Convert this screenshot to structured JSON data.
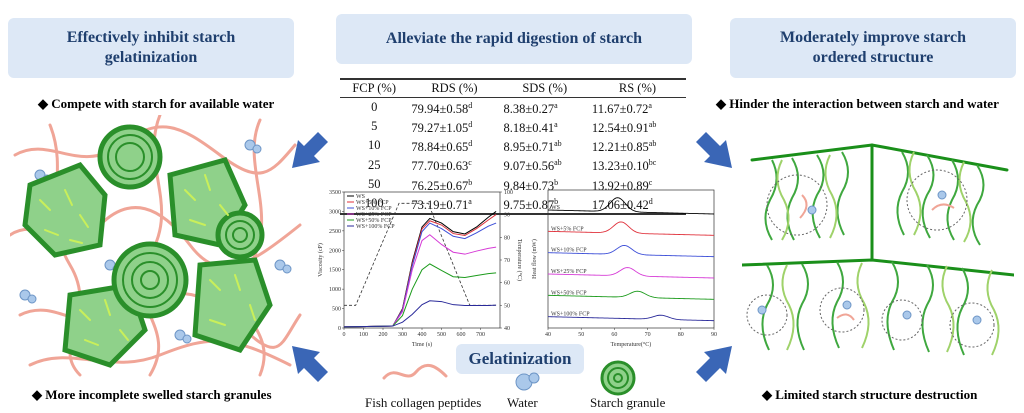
{
  "headers": {
    "left": "Effectively inhibit starch gelatinization",
    "center": "Alleviate the rapid digestion of starch",
    "right": "Moderately improve starch ordered structure"
  },
  "bullets": {
    "left_top": "Compete with starch for available water",
    "left_bottom": "More incomplete swelled starch granules",
    "right_top": "Hinder the interaction between starch and water",
    "right_bottom": "Limited starch structure destruction"
  },
  "table": {
    "columns": [
      "FCP (%)",
      "RDS (%)",
      "SDS (%)",
      "RS (%)"
    ],
    "rows": [
      {
        "fcp": "0",
        "rds": "79.94±0.58",
        "rds_sup": "d",
        "sds": "8.38±0.27",
        "sds_sup": "a",
        "rs": "11.67±0.72",
        "rs_sup": "a"
      },
      {
        "fcp": "5",
        "rds": "79.27±1.05",
        "rds_sup": "d",
        "sds": "8.18±0.41",
        "sds_sup": "a",
        "rs": "12.54±0.91",
        "rs_sup": "ab"
      },
      {
        "fcp": "10",
        "rds": "78.84±0.65",
        "rds_sup": "d",
        "sds": "8.95±0.71",
        "sds_sup": "ab",
        "rs": "12.21±0.85",
        "rs_sup": "ab"
      },
      {
        "fcp": "25",
        "rds": "77.70±0.63",
        "rds_sup": "c",
        "sds": "9.07±0.56",
        "sds_sup": "ab",
        "rs": "13.23±0.10",
        "rs_sup": "bc"
      },
      {
        "fcp": "50",
        "rds": "76.25±0.67",
        "rds_sup": "b",
        "sds": "9.84±0.73",
        "sds_sup": "b",
        "rs": "13.92±0.89",
        "rs_sup": "c"
      },
      {
        "fcp": "100",
        "rds": "73.19±0.71",
        "rds_sup": "a",
        "sds": "9.75±0.87",
        "sds_sup": "b",
        "rs": "17.06±0.42",
        "rs_sup": "d"
      }
    ]
  },
  "gelatinization_label": "Gelatinization",
  "legend": {
    "peptides": "Fish collagen peptides",
    "water": "Water",
    "granule": "Starch granule"
  },
  "chart_data": [
    {
      "type": "line",
      "xlabel": "Time (s)",
      "ylabel": "Viscosity (cP)",
      "y2label": "Temperature (°C)",
      "xlim": [
        0,
        800
      ],
      "ylim": [
        0,
        3500
      ],
      "y2lim": [
        40,
        100
      ],
      "x_ticks": [
        "0",
        "100",
        "200",
        "300",
        "400",
        "500",
        "600",
        "700"
      ],
      "y_ticks": [
        "0",
        "500",
        "1000",
        "1500",
        "2000",
        "2500",
        "3000",
        "3500"
      ],
      "y2_ticks": [
        "40",
        "50",
        "60",
        "70",
        "80",
        "90",
        "100"
      ],
      "legend": [
        "WS",
        "WS+5% FCP",
        "WS+10% FCP",
        "WS+25% FCP",
        "WS+50% FCP",
        "WS+100% FCP"
      ],
      "colors": [
        "#000000",
        "#e0313b",
        "#3d4fd8",
        "#d63ad6",
        "#1c9b1c",
        "#2a2a9a"
      ],
      "x": [
        0,
        250,
        300,
        350,
        400,
        440,
        500,
        560,
        620,
        680,
        740,
        780
      ],
      "series": [
        {
          "name": "WS",
          "values": [
            30,
            50,
            500,
            1700,
            2600,
            2820,
            2700,
            2480,
            2420,
            2600,
            2850,
            3000
          ]
        },
        {
          "name": "WS+5% FCP",
          "values": [
            30,
            50,
            480,
            1650,
            2550,
            2760,
            2650,
            2430,
            2380,
            2560,
            2780,
            2920
          ]
        },
        {
          "name": "WS+10% FCP",
          "values": [
            30,
            50,
            460,
            1600,
            2480,
            2700,
            2560,
            2360,
            2300,
            2450,
            2620,
            2700
          ]
        },
        {
          "name": "WS+25% FCP",
          "values": [
            30,
            50,
            420,
            1500,
            2250,
            2400,
            2150,
            1950,
            1900,
            1980,
            2050,
            2080
          ]
        },
        {
          "name": "WS+50% FCP",
          "values": [
            30,
            50,
            320,
            1000,
            1500,
            1650,
            1480,
            1320,
            1300,
            1350,
            1400,
            1420
          ]
        },
        {
          "name": "WS+100% FCP",
          "values": [
            30,
            50,
            150,
            350,
            600,
            700,
            680,
            600,
            580,
            580,
            580,
            590
          ]
        }
      ],
      "temperature": {
        "x": [
          0,
          60,
          282,
          432,
          645,
          780
        ],
        "values": [
          50,
          50,
          95,
          95,
          50,
          50
        ]
      }
    },
    {
      "type": "line",
      "xlabel": "Temperature(°C)",
      "ylabel": "Heat flow (mW)",
      "xlim": [
        40,
        90
      ],
      "x_ticks": [
        "40",
        "50",
        "60",
        "70",
        "80",
        "90"
      ],
      "series": [
        {
          "name": "WS",
          "color": "#000000",
          "peak": 61,
          "height": 1.0
        },
        {
          "name": "WS+5% FCP",
          "color": "#e0313b",
          "peak": 62,
          "height": 0.8
        },
        {
          "name": "WS+10% FCP",
          "color": "#3d4fd8",
          "peak": 63,
          "height": 0.65
        },
        {
          "name": "WS+25% FCP",
          "color": "#d63ad6",
          "peak": 64,
          "height": 0.6
        },
        {
          "name": "WS+50% FCP",
          "color": "#1c9b1c",
          "peak": 67,
          "height": 0.45
        },
        {
          "name": "WS+100% FCP",
          "color": "#2a2a9a",
          "peak": 74,
          "height": 0.3
        }
      ]
    }
  ]
}
